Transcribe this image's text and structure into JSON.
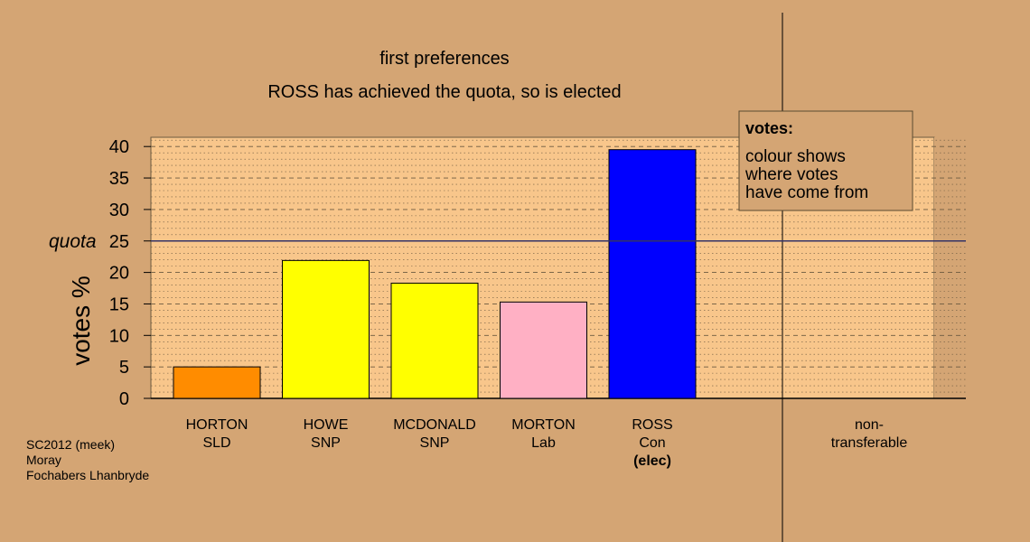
{
  "chart_data": {
    "type": "bar",
    "title": "first preferences",
    "subtitle": "ROSS has achieved the quota, so is elected",
    "ylabel": "votes %",
    "ylim": [
      0,
      41.5
    ],
    "yticks": [
      0,
      5,
      10,
      15,
      20,
      25,
      30,
      35,
      40
    ],
    "quota": {
      "label": "quota",
      "value": 25
    },
    "categories": [
      {
        "name": "HORTON",
        "party": "SLD",
        "note": "",
        "value": 5.0,
        "color": "#ff8c00"
      },
      {
        "name": "HOWE",
        "party": "SNP",
        "note": "",
        "value": 21.9,
        "color": "#ffff00"
      },
      {
        "name": "MCDONALD",
        "party": "SNP",
        "note": "",
        "value": 18.3,
        "color": "#ffff00"
      },
      {
        "name": "MORTON",
        "party": "Lab",
        "note": "",
        "value": 15.3,
        "color": "#ffb0c4"
      },
      {
        "name": "ROSS",
        "party": "Con",
        "note": "(elec)",
        "value": 39.5,
        "color": "#0000ff"
      }
    ],
    "extra_category": {
      "line1": "non-",
      "line2": "transferable",
      "value": 0
    },
    "legend": {
      "title": "votes:",
      "lines": [
        "colour shows",
        "where votes",
        "have come from"
      ],
      "placement": "top-right"
    },
    "grid": true
  },
  "footer": [
    "SC2012 (meek)",
    "Moray",
    "Fochabers Lhanbryde"
  ]
}
